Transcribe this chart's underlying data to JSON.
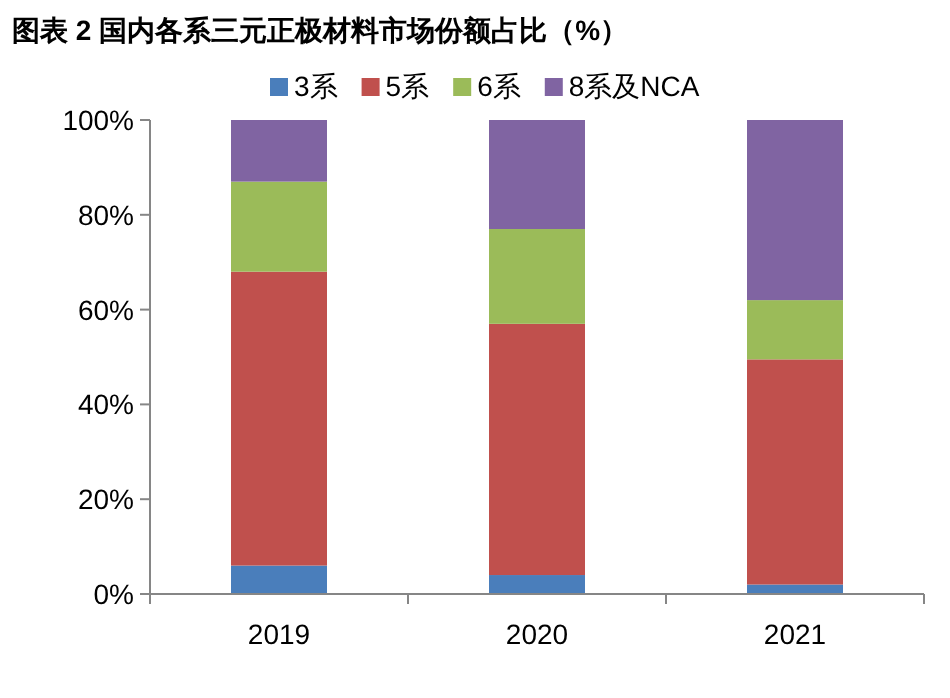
{
  "chart_data": {
    "type": "bar",
    "title": "图表 2 国内各系三元正极材料市场份额占比（%）",
    "categories": [
      "2019",
      "2020",
      "2021"
    ],
    "series": [
      {
        "name": "3系",
        "color": "#4a7ebb",
        "values": [
          6,
          4,
          2
        ]
      },
      {
        "name": "5系",
        "color": "#c0504d",
        "values": [
          62,
          53,
          47.5
        ]
      },
      {
        "name": "6系",
        "color": "#9bbb59",
        "values": [
          19,
          20,
          12.5
        ]
      },
      {
        "name": "8系及NCA",
        "color": "#8064a2",
        "values": [
          13,
          23,
          38
        ]
      }
    ],
    "stacked": true,
    "ylim": [
      0,
      100
    ],
    "yticks": [
      {
        "value": 0,
        "label": "0%"
      },
      {
        "value": 20,
        "label": "20%"
      },
      {
        "value": 40,
        "label": "40%"
      },
      {
        "value": 60,
        "label": "60%"
      },
      {
        "value": 80,
        "label": "80%"
      },
      {
        "value": 100,
        "label": "100%"
      }
    ],
    "legend": "top",
    "grid": false
  }
}
